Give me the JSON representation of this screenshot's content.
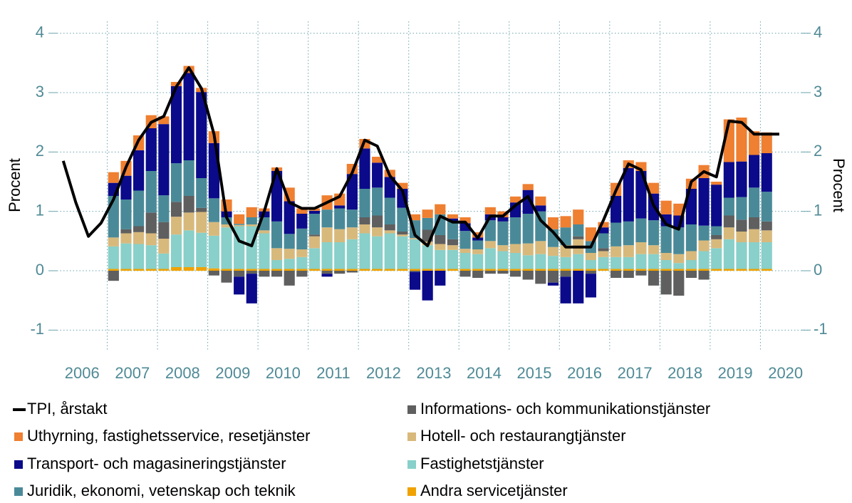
{
  "chart_data": {
    "type": "bar",
    "stacked": true,
    "y_label": "Procent",
    "y2_label": "Procent",
    "categories": [
      "2006",
      "2007",
      "2008",
      "2009",
      "2010",
      "2011",
      "2012",
      "2013",
      "2014",
      "2015",
      "2016",
      "2017",
      "2018",
      "2019",
      "2020"
    ],
    "ylim": [
      -1.2,
      4.2
    ],
    "yticks": [
      -1,
      0,
      1,
      2,
      3,
      4
    ],
    "y2lim": [
      -1.2,
      4.2
    ],
    "y2ticks": [
      -1,
      0,
      1,
      2,
      3,
      4
    ],
    "grid": true,
    "series": [
      {
        "name": "TPI, årstakt",
        "type": "line",
        "color": "#000000",
        "values": [
          [
            1.85,
            1.15,
            0.58,
            0.8
          ],
          [
            1.2,
            1.75,
            2.2,
            2.5
          ],
          [
            2.6,
            3.1,
            3.42,
            3.07
          ],
          [
            2.3,
            0.9,
            0.5,
            0.42
          ],
          [
            1.0,
            1.72,
            1.15,
            1.05
          ],
          [
            1.05,
            1.15,
            1.25,
            1.65
          ],
          [
            2.2,
            2.1,
            1.6,
            1.35
          ],
          [
            0.6,
            0.42,
            0.92,
            0.82
          ],
          [
            0.82,
            0.55,
            0.92,
            0.92
          ],
          [
            1.1,
            1.25,
            0.85,
            0.65
          ],
          [
            0.4,
            0.4,
            0.4,
            0.85
          ],
          [
            1.35,
            1.8,
            1.7,
            1.1
          ],
          [
            0.78,
            0.7,
            1.5,
            1.67
          ],
          [
            1.58,
            2.52,
            2.5,
            2.3
          ],
          [
            2.3,
            2.3,
            null,
            null
          ]
        ]
      },
      {
        "name": "Uthyrning, fastighetsservice, resetjänster",
        "color": "#ef7f31",
        "values": [
          [
            null,
            null,
            null,
            null
          ],
          [
            0.18,
            0.25,
            0.25,
            0.22
          ],
          [
            0.13,
            0.07,
            0.12,
            0.07
          ],
          [
            0.2,
            0.2,
            0.16,
            0.17
          ],
          [
            0.05,
            0.06,
            0.23,
            0.09
          ],
          [
            0.04,
            0.24,
            0.2,
            0.17
          ],
          [
            0.16,
            0.1,
            0.12,
            0.1
          ],
          [
            0.1,
            0.14,
            0.17,
            0.07
          ],
          [
            0.1,
            0.09,
            0.12,
            0.1
          ],
          [
            0.1,
            0.1,
            0.15,
            0.2
          ],
          [
            0.19,
            0.25,
            0.23,
            0.09
          ],
          [
            0.22,
            0.13,
            0.15,
            0.18
          ],
          [
            0.23,
            0.2,
            0.17,
            0.22
          ],
          [
            0.05,
            0.72,
            0.74,
            0.4
          ],
          [
            0.35,
            null,
            null,
            null
          ]
        ]
      },
      {
        "name": "Transport- och magasineringstjänster",
        "color": "#0b0a8a",
        "values": [
          [
            null,
            null,
            null,
            null
          ],
          [
            0.22,
            0.4,
            0.68,
            0.72
          ],
          [
            1.2,
            1.3,
            1.47,
            1.45
          ],
          [
            0.93,
            0.1,
            -0.3,
            -0.5
          ],
          [
            0.1,
            0.85,
            0.55,
            0.25
          ],
          [
            0.05,
            -0.05,
            0.05,
            0.6
          ],
          [
            0.68,
            0.42,
            0.35,
            0.32
          ],
          [
            -0.3,
            -0.5,
            -0.25,
            0.05
          ],
          [
            0.13,
            0.05,
            0.1,
            0.07
          ],
          [
            0.25,
            0.4,
            0.1,
            -0.05
          ],
          [
            -0.45,
            -0.55,
            -0.4,
            0.1
          ],
          [
            0.45,
            0.9,
            0.8,
            0.45
          ],
          [
            0.2,
            0.2,
            0.6,
            0.8
          ],
          [
            0.7,
            0.6,
            0.6,
            0.55
          ],
          [
            0.65,
            null,
            null,
            null
          ]
        ]
      },
      {
        "name": "Juridik, ekonomi, vetenskap och teknik",
        "color": "#4a8a98",
        "values": [
          [
            null,
            null,
            null,
            null
          ],
          [
            0.7,
            0.5,
            0.6,
            0.7
          ],
          [
            0.45,
            0.65,
            0.6,
            0.5
          ],
          [
            0.4,
            0.12,
            0.02,
            0.12
          ],
          [
            0.22,
            0.45,
            0.25,
            0.35
          ],
          [
            0.35,
            0.3,
            0.35,
            0.3
          ],
          [
            0.48,
            0.47,
            0.45,
            0.4
          ],
          [
            0.3,
            0.2,
            0.35,
            0.3
          ],
          [
            0.3,
            0.15,
            0.35,
            0.4
          ],
          [
            0.45,
            0.5,
            0.5,
            0.3
          ],
          [
            0.3,
            0.2,
            0.2,
            0.25
          ],
          [
            0.4,
            0.4,
            0.4,
            0.42
          ],
          [
            0.45,
            0.45,
            0.45,
            0.25
          ],
          [
            0.15,
            0.3,
            0.38,
            0.5
          ],
          [
            0.5,
            null,
            null,
            null
          ]
        ]
      },
      {
        "name": "Informations- och kommunikationstjänster",
        "color": "#5f5f5f",
        "values": [
          [
            null,
            null,
            null,
            null
          ],
          [
            -0.17,
            0.07,
            0.1,
            0.35
          ],
          [
            0.28,
            0.25,
            0.28,
            0.07
          ],
          [
            -0.08,
            -0.2,
            -0.1,
            -0.05
          ],
          [
            -0.1,
            -0.1,
            -0.25,
            -0.1
          ],
          [
            0.03,
            -0.05,
            -0.05,
            -0.03
          ],
          [
            0.12,
            0.2,
            0.1,
            0.05
          ],
          [
            -0.02,
            0.2,
            0.15,
            0.1
          ],
          [
            -0.1,
            -0.12,
            -0.05,
            -0.05
          ],
          [
            -0.1,
            -0.15,
            -0.22,
            -0.2
          ],
          [
            -0.1,
            0.05,
            -0.05,
            0.05
          ],
          [
            -0.12,
            -0.12,
            -0.08,
            -0.25
          ],
          [
            -0.4,
            -0.42,
            -0.12,
            -0.15
          ],
          [
            0.07,
            0.2,
            0.2,
            0.2
          ],
          [
            0.15,
            null,
            null,
            null
          ]
        ]
      },
      {
        "name": "Hotell- och restaurangtjänster",
        "color": "#d8b97c",
        "values": [
          [
            null,
            null,
            null,
            null
          ],
          [
            0.15,
            0.17,
            0.2,
            0.2
          ],
          [
            0.25,
            0.3,
            0.3,
            0.35
          ],
          [
            0.23,
            0.05,
            0.02,
            0.03
          ],
          [
            0.05,
            0.2,
            0.17,
            0.13
          ],
          [
            0.2,
            0.25,
            0.22,
            0.2
          ],
          [
            0.15,
            0.15,
            0.05,
            0.03
          ],
          [
            0.02,
            0.06,
            0.1,
            0.08
          ],
          [
            0.07,
            0.08,
            0.12,
            0.1
          ],
          [
            0.15,
            0.2,
            0.22,
            0.15
          ],
          [
            0.2,
            0.25,
            0.12,
            0.1
          ],
          [
            0.18,
            0.2,
            0.2,
            0.15
          ],
          [
            0.12,
            0.15,
            0.15,
            0.18
          ],
          [
            0.15,
            0.2,
            0.18,
            0.22
          ],
          [
            0.2,
            null,
            null,
            null
          ]
        ]
      },
      {
        "name": "Fastighetstjänster",
        "color": "#88d0c9",
        "values": [
          [
            null,
            null,
            null,
            null
          ],
          [
            0.38,
            0.43,
            0.42,
            0.4
          ],
          [
            0.26,
            0.55,
            0.62,
            0.58
          ],
          [
            0.55,
            0.7,
            0.72,
            0.72
          ],
          [
            0.6,
            0.15,
            0.17,
            0.2
          ],
          [
            0.35,
            0.45,
            0.45,
            0.5
          ],
          [
            0.6,
            0.55,
            0.6,
            0.55
          ],
          [
            0.5,
            0.4,
            0.32,
            0.32
          ],
          [
            0.27,
            0.25,
            0.35,
            0.3
          ],
          [
            0.27,
            0.23,
            0.25,
            0.22
          ],
          [
            0.2,
            0.25,
            0.15,
            0.2
          ],
          [
            0.2,
            0.2,
            0.25,
            0.25
          ],
          [
            0.15,
            0.1,
            0.15,
            0.3
          ],
          [
            0.35,
            0.5,
            0.45,
            0.45
          ],
          [
            0.45,
            null,
            null,
            null
          ]
        ]
      },
      {
        "name": "Andra servicetjänster",
        "color": "#f0a200",
        "values": [
          [
            null,
            null,
            null,
            null
          ],
          [
            0.03,
            0.03,
            0.03,
            0.03
          ],
          [
            0.03,
            0.06,
            0.06,
            0.06
          ],
          [
            0.04,
            0.03,
            0.03,
            0.03
          ],
          [
            0.03,
            0.03,
            0.03,
            0.03
          ],
          [
            0.03,
            0.03,
            0.03,
            0.03
          ],
          [
            0.03,
            0.03,
            0.03,
            0.03
          ],
          [
            0.03,
            0.03,
            0.03,
            0.03
          ],
          [
            0.03,
            0.03,
            0.03,
            0.03
          ],
          [
            0.03,
            0.03,
            0.03,
            0.03
          ],
          [
            0.03,
            0.03,
            0.03,
            0.03
          ],
          [
            0.03,
            0.03,
            0.03,
            0.03
          ],
          [
            0.03,
            0.03,
            0.03,
            0.03
          ],
          [
            0.03,
            0.03,
            0.03,
            0.03
          ],
          [
            0.03,
            null,
            null,
            null
          ]
        ]
      }
    ]
  }
}
